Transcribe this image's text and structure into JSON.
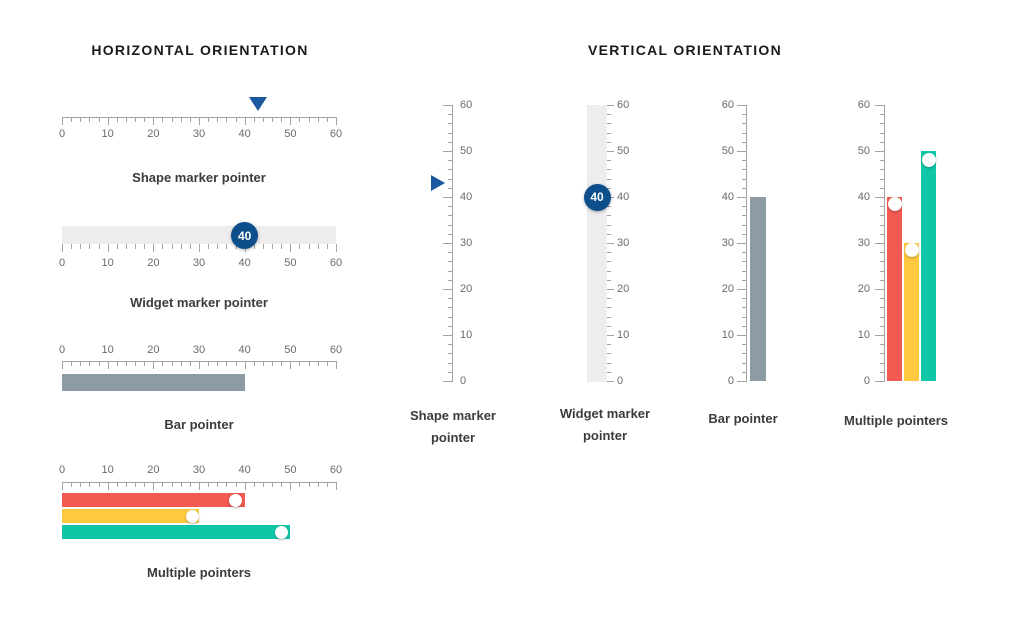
{
  "colors": {
    "background": "#ffffff",
    "axis": "#a3a3a3",
    "tick_label": "#6b6b6b",
    "caption": "#3c3c3c",
    "title": "#1a1a1a",
    "track": "#ededed",
    "triangle_blue": "#1b589e",
    "circle_blue": "#0d4f8b",
    "gray_bar": "#8d9ca4",
    "red_bar": "#f25a52",
    "yellow_bar": "#fdc93f",
    "teal_bar": "#0fc6a7",
    "white_marker": "#ffffff",
    "badge_text": "#ffffff"
  },
  "chart_data": {
    "type": "linear-gauge",
    "axis": {
      "min": 0,
      "max": 60,
      "minor_interval": 2,
      "major_interval": 10,
      "major_tick_labels": [
        "0",
        "10",
        "20",
        "30",
        "40",
        "50",
        "60"
      ]
    },
    "sections": [
      {
        "orientation": "horizontal",
        "title": "HORIZONTAL ORIENTATION",
        "gauges": [
          {
            "kind": "shape",
            "caption": "Shape marker pointer",
            "pointer": {
              "type": "triangle-marker",
              "value": 43,
              "color": "#1b589e"
            }
          },
          {
            "kind": "widget",
            "caption": "Widget marker pointer",
            "track_color": "#ededed",
            "pointer": {
              "type": "circle-badge",
              "value": 40,
              "label": "40",
              "color": "#0d4f8b"
            }
          },
          {
            "kind": "bar",
            "caption": "Bar pointer",
            "pointer": {
              "type": "bar",
              "value": 40,
              "color": "#8d9ca4"
            }
          },
          {
            "kind": "multiple",
            "caption": "Multiple pointers",
            "pointers": [
              {
                "type": "bar",
                "value": 40,
                "color": "#f25a52",
                "marker": {
                  "type": "circle",
                  "value": 38,
                  "color": "#ffffff"
                }
              },
              {
                "type": "bar",
                "value": 30,
                "color": "#fdc93f",
                "marker": {
                  "type": "circle",
                  "value": 28.5,
                  "color": "#ffffff"
                }
              },
              {
                "type": "bar",
                "value": 50,
                "color": "#0fc6a7",
                "marker": {
                  "type": "circle",
                  "value": 48,
                  "color": "#ffffff"
                }
              }
            ]
          }
        ]
      },
      {
        "orientation": "vertical",
        "title": "VERTICAL ORIENTATION",
        "gauges": [
          {
            "kind": "shape",
            "caption": "Shape marker pointer",
            "pointer": {
              "type": "triangle-marker",
              "value": 43,
              "color": "#1b589e"
            }
          },
          {
            "kind": "widget",
            "caption": "Widget marker pointer",
            "track_color": "#ededed",
            "pointer": {
              "type": "circle-badge",
              "value": 40,
              "label": "40",
              "color": "#0d4f8b"
            }
          },
          {
            "kind": "bar",
            "caption": "Bar pointer",
            "pointer": {
              "type": "bar",
              "value": 40,
              "color": "#8d9ca4"
            }
          },
          {
            "kind": "multiple",
            "caption": "Multiple pointers",
            "pointers": [
              {
                "type": "bar",
                "value": 40,
                "color": "#f25a52",
                "marker": {
                  "type": "circle",
                  "value": 38.5,
                  "color": "#ffffff"
                }
              },
              {
                "type": "bar",
                "value": 30,
                "color": "#fdc93f",
                "marker": {
                  "type": "circle",
                  "value": 28.5,
                  "color": "#ffffff"
                }
              },
              {
                "type": "bar",
                "value": 50,
                "color": "#0fc6a7",
                "marker": {
                  "type": "circle",
                  "value": 48,
                  "color": "#ffffff"
                }
              }
            ]
          }
        ]
      }
    ]
  }
}
